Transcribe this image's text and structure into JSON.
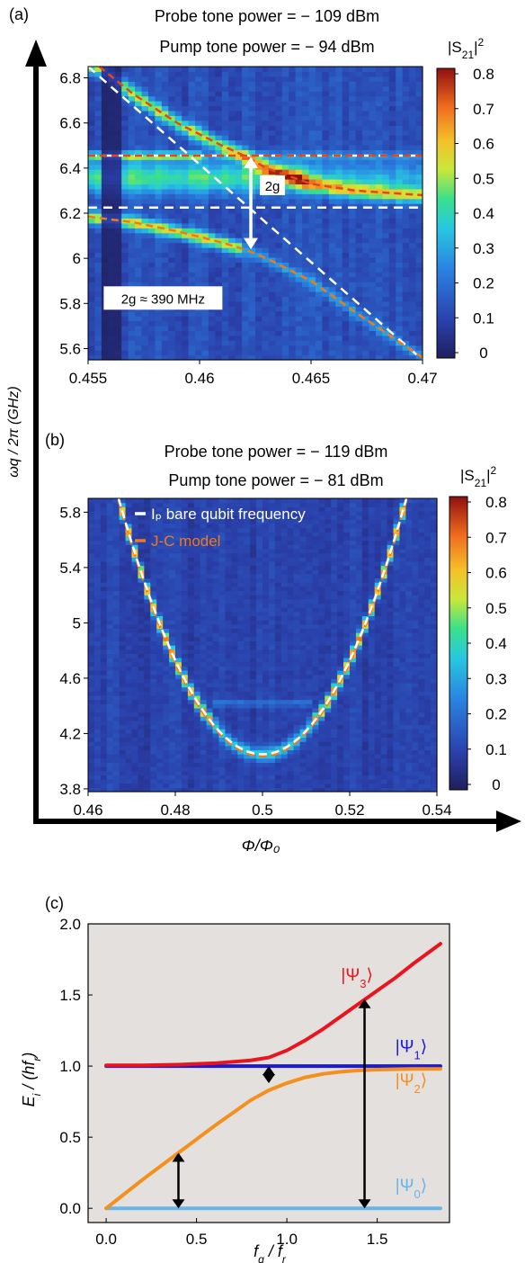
{
  "panels": {
    "a": {
      "label": "(a)",
      "probe": "Probe tone power = − 109 dBm",
      "pump": "Pump tone power = − 94 dBm"
    },
    "b": {
      "label": "(b)",
      "probe": "Probe tone power = − 119 dBm",
      "pump": "Pump tone power = − 81 dBm"
    },
    "c": {
      "label": "(c)"
    }
  },
  "shared_axes": {
    "ylabel": "ωq / 2π  (GHz)",
    "xlabel": "Φ/Φ₀"
  },
  "colorbar": {
    "label_base": "|S",
    "label_sub": "21",
    "label_tail": "|",
    "label_sup": "2",
    "ticks": [
      "0.8",
      "0.7",
      "0.6",
      "0.5",
      "0.4",
      "0.3",
      "0.2",
      "0.1",
      "0"
    ]
  },
  "chart_data": [
    {
      "type": "heatmap",
      "panel": "a",
      "xlim": [
        0.455,
        0.47
      ],
      "ylim": [
        5.55,
        6.85
      ],
      "xticks": [
        "0.455",
        "0.46",
        "0.465",
        "0.47"
      ],
      "yticks": [
        "6.8",
        "6.6",
        "6.4",
        "6.2",
        "6",
        "5.8",
        "5.6"
      ],
      "clim": [
        0,
        0.8
      ],
      "annotation": "2g ≈ 390 MHz",
      "arrow_label": "2g",
      "resonator_levels_ghz": [
        6.455,
        6.225
      ],
      "bare_qubit": {
        "x": [
          0.455,
          0.47
        ],
        "y": [
          6.85,
          5.55
        ]
      },
      "jc_branches": [
        {
          "x": [
            0.4555,
            0.457,
            0.459,
            0.461,
            0.462,
            0.463,
            0.465,
            0.467,
            0.47
          ],
          "y": [
            6.85,
            6.73,
            6.6,
            6.5,
            6.455,
            6.4,
            6.33,
            6.3,
            6.28
          ]
        },
        {
          "x": [
            0.455,
            0.457,
            0.459,
            0.461,
            0.462,
            0.463,
            0.465,
            0.467,
            0.47
          ],
          "y": [
            6.185,
            6.16,
            6.12,
            6.07,
            6.04,
            6.0,
            5.9,
            5.76,
            5.56
          ]
        },
        {
          "x": [
            0.455,
            0.462,
            0.47
          ],
          "y": [
            6.455,
            6.455,
            6.455
          ]
        }
      ]
    },
    {
      "type": "heatmap",
      "panel": "b",
      "xlim": [
        0.46,
        0.54
      ],
      "ylim": [
        3.78,
        5.9
      ],
      "xticks": [
        "0.46",
        "0.48",
        "0.5",
        "0.52",
        "0.54"
      ],
      "yticks": [
        "5.8",
        "5.4",
        "5",
        "4.6",
        "4.2",
        "3.8"
      ],
      "clim": [
        0,
        0.8
      ],
      "legend": [
        "Iₚ bare qubit frequency",
        "J-C model"
      ],
      "parabola": {
        "vertex_x": 0.5,
        "vertex_y": 4.05,
        "edge_x": 0.467,
        "edge_y": 5.9
      },
      "faint_line_y": 4.42
    },
    {
      "type": "line",
      "panel": "c",
      "xlabel": "f_q / f_r",
      "ylabel": "E_i / (hf_r)",
      "xlim": [
        -0.1,
        1.9
      ],
      "ylim": [
        -0.1,
        2.0
      ],
      "xticks": [
        0.0,
        0.5,
        1.0,
        1.5
      ],
      "yticks": [
        0.0,
        0.5,
        1.0,
        1.5,
        2.0
      ],
      "series": [
        {
          "name": "|Ψ₀⟩",
          "color": "#6ab4e8",
          "x": [
            0.0,
            1.85
          ],
          "y": [
            0.0,
            0.0
          ]
        },
        {
          "name": "|Ψ₁⟩",
          "color": "#1a1ad6",
          "x": [
            0.0,
            1.85
          ],
          "y": [
            1.0,
            1.0
          ]
        },
        {
          "name": "|Ψ₂⟩",
          "color": "#f4901e",
          "x": [
            0.0,
            0.2,
            0.4,
            0.6,
            0.8,
            0.9,
            1.0,
            1.1,
            1.2,
            1.3,
            1.4,
            1.5,
            1.6,
            1.7,
            1.85
          ],
          "y": [
            0.0,
            0.2,
            0.39,
            0.58,
            0.76,
            0.83,
            0.88,
            0.92,
            0.945,
            0.96,
            0.97,
            0.975,
            0.978,
            0.98,
            0.98
          ]
        },
        {
          "name": "|Ψ₃⟩",
          "color": "#e8141e",
          "x": [
            0.0,
            0.2,
            0.4,
            0.6,
            0.8,
            0.9,
            1.0,
            1.1,
            1.2,
            1.3,
            1.4,
            1.5,
            1.6,
            1.7,
            1.85
          ],
          "y": [
            1.005,
            1.005,
            1.01,
            1.02,
            1.04,
            1.06,
            1.11,
            1.18,
            1.26,
            1.35,
            1.44,
            1.53,
            1.62,
            1.72,
            1.86
          ]
        }
      ],
      "arrows": [
        {
          "x": 0.9,
          "y0": 0.88,
          "y1": 1.0
        },
        {
          "x": 0.4,
          "y0": 0.0,
          "y1": 0.39
        },
        {
          "x": 1.43,
          "y0": 0.0,
          "y1": 1.47
        }
      ],
      "state_labels": [
        {
          "text_base": "|Ψ",
          "sub": "3",
          "color": "#e8141e",
          "x": 1.3,
          "y": 1.6
        },
        {
          "text_base": "|Ψ",
          "sub": "1",
          "color": "#1a1ad6",
          "x": 1.6,
          "y": 1.1
        },
        {
          "text_base": "|Ψ",
          "sub": "2",
          "color": "#f4901e",
          "x": 1.6,
          "y": 0.86
        },
        {
          "text_base": "|Ψ",
          "sub": "0",
          "color": "#6ab4e8",
          "x": 1.6,
          "y": 0.12
        }
      ]
    }
  ]
}
